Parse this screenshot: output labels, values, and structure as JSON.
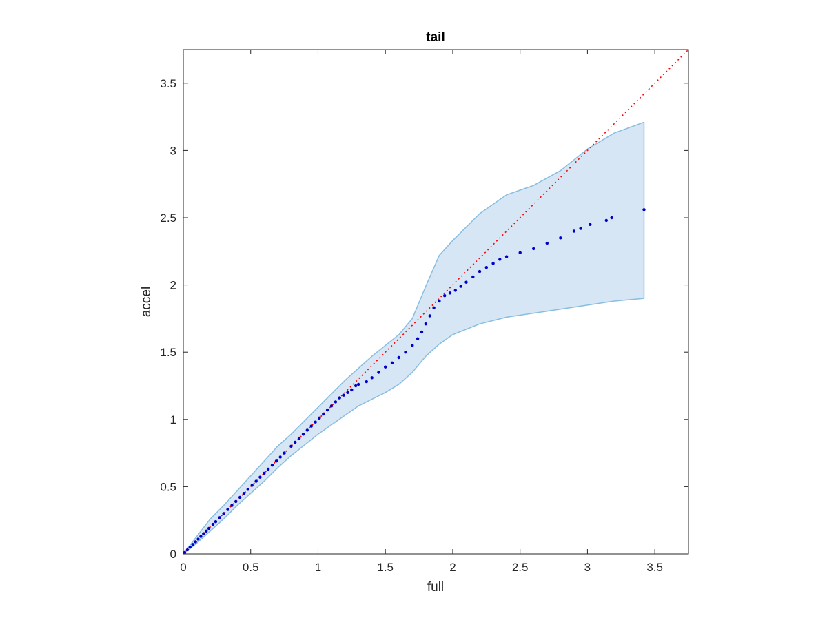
{
  "chart_data": {
    "type": "scatter",
    "title": "tail",
    "xlabel": "full",
    "ylabel": "accel",
    "xlim": [
      0,
      3.75
    ],
    "ylim": [
      0,
      3.75
    ],
    "xticks": [
      "0",
      "0.5",
      "1",
      "1.5",
      "2",
      "2.5",
      "3",
      "3.5"
    ],
    "yticks": [
      "0",
      "0.5",
      "1",
      "1.5",
      "2",
      "2.5",
      "3",
      "3.5"
    ],
    "grid": false,
    "legend": "none",
    "reference_line": {
      "style": "dotted",
      "color": "#ff0000",
      "x": [
        0,
        3.75
      ],
      "y": [
        0,
        3.75
      ]
    },
    "band": {
      "color": "#d6e6f4",
      "edge_color": "#88bde0",
      "x": [
        0,
        0.1,
        0.2,
        0.3,
        0.4,
        0.5,
        0.6,
        0.7,
        0.8,
        0.9,
        1.0,
        1.1,
        1.2,
        1.3,
        1.4,
        1.5,
        1.6,
        1.7,
        1.8,
        1.9,
        2.0,
        2.2,
        2.4,
        2.6,
        2.8,
        3.0,
        3.2,
        3.42
      ],
      "upper": [
        0,
        0.13,
        0.26,
        0.36,
        0.47,
        0.58,
        0.69,
        0.8,
        0.89,
        0.99,
        1.09,
        1.19,
        1.29,
        1.38,
        1.47,
        1.55,
        1.63,
        1.75,
        1.99,
        2.22,
        2.33,
        2.53,
        2.67,
        2.74,
        2.85,
        3.01,
        3.13,
        3.21
      ],
      "lower": [
        0,
        0.08,
        0.17,
        0.26,
        0.36,
        0.45,
        0.54,
        0.64,
        0.73,
        0.81,
        0.89,
        0.96,
        1.03,
        1.1,
        1.15,
        1.2,
        1.26,
        1.35,
        1.47,
        1.56,
        1.63,
        1.71,
        1.76,
        1.79,
        1.82,
        1.85,
        1.88,
        1.9
      ]
    },
    "series": [
      {
        "color": "#0000cc",
        "points": [
          [
            0.01,
            0.01
          ],
          [
            0.03,
            0.03
          ],
          [
            0.05,
            0.05
          ],
          [
            0.07,
            0.07
          ],
          [
            0.09,
            0.09
          ],
          [
            0.11,
            0.11
          ],
          [
            0.13,
            0.13
          ],
          [
            0.15,
            0.15
          ],
          [
            0.17,
            0.17
          ],
          [
            0.19,
            0.19
          ],
          [
            0.22,
            0.22
          ],
          [
            0.24,
            0.24
          ],
          [
            0.27,
            0.27
          ],
          [
            0.3,
            0.3
          ],
          [
            0.33,
            0.33
          ],
          [
            0.36,
            0.36
          ],
          [
            0.39,
            0.39
          ],
          [
            0.42,
            0.42
          ],
          [
            0.45,
            0.45
          ],
          [
            0.48,
            0.48
          ],
          [
            0.51,
            0.51
          ],
          [
            0.54,
            0.54
          ],
          [
            0.57,
            0.57
          ],
          [
            0.6,
            0.6
          ],
          [
            0.63,
            0.63
          ],
          [
            0.66,
            0.66
          ],
          [
            0.69,
            0.69
          ],
          [
            0.72,
            0.72
          ],
          [
            0.75,
            0.75
          ],
          [
            0.8,
            0.8
          ],
          [
            0.83,
            0.83
          ],
          [
            0.86,
            0.86
          ],
          [
            0.89,
            0.89
          ],
          [
            0.92,
            0.92
          ],
          [
            0.95,
            0.95
          ],
          [
            0.98,
            0.98
          ],
          [
            1.01,
            1.01
          ],
          [
            1.04,
            1.04
          ],
          [
            1.07,
            1.07
          ],
          [
            1.1,
            1.1
          ],
          [
            1.13,
            1.13
          ],
          [
            1.16,
            1.16
          ],
          [
            1.19,
            1.18
          ],
          [
            1.22,
            1.2
          ],
          [
            1.25,
            1.22
          ],
          [
            1.28,
            1.25
          ],
          [
            1.3,
            1.26
          ],
          [
            1.36,
            1.28
          ],
          [
            1.4,
            1.31
          ],
          [
            1.45,
            1.35
          ],
          [
            1.5,
            1.39
          ],
          [
            1.55,
            1.42
          ],
          [
            1.6,
            1.46
          ],
          [
            1.65,
            1.5
          ],
          [
            1.7,
            1.55
          ],
          [
            1.74,
            1.6
          ],
          [
            1.77,
            1.65
          ],
          [
            1.8,
            1.71
          ],
          [
            1.83,
            1.77
          ],
          [
            1.86,
            1.83
          ],
          [
            1.9,
            1.88
          ],
          [
            1.94,
            1.92
          ],
          [
            1.98,
            1.94
          ],
          [
            2.02,
            1.96
          ],
          [
            2.06,
            1.99
          ],
          [
            2.1,
            2.02
          ],
          [
            2.15,
            2.06
          ],
          [
            2.2,
            2.1
          ],
          [
            2.25,
            2.13
          ],
          [
            2.3,
            2.16
          ],
          [
            2.35,
            2.19
          ],
          [
            2.4,
            2.21
          ],
          [
            2.5,
            2.24
          ],
          [
            2.6,
            2.27
          ],
          [
            2.7,
            2.31
          ],
          [
            2.8,
            2.35
          ],
          [
            2.9,
            2.4
          ],
          [
            2.95,
            2.42
          ],
          [
            3.02,
            2.45
          ],
          [
            3.14,
            2.48
          ],
          [
            3.18,
            2.5
          ],
          [
            3.42,
            2.56
          ]
        ]
      }
    ]
  }
}
